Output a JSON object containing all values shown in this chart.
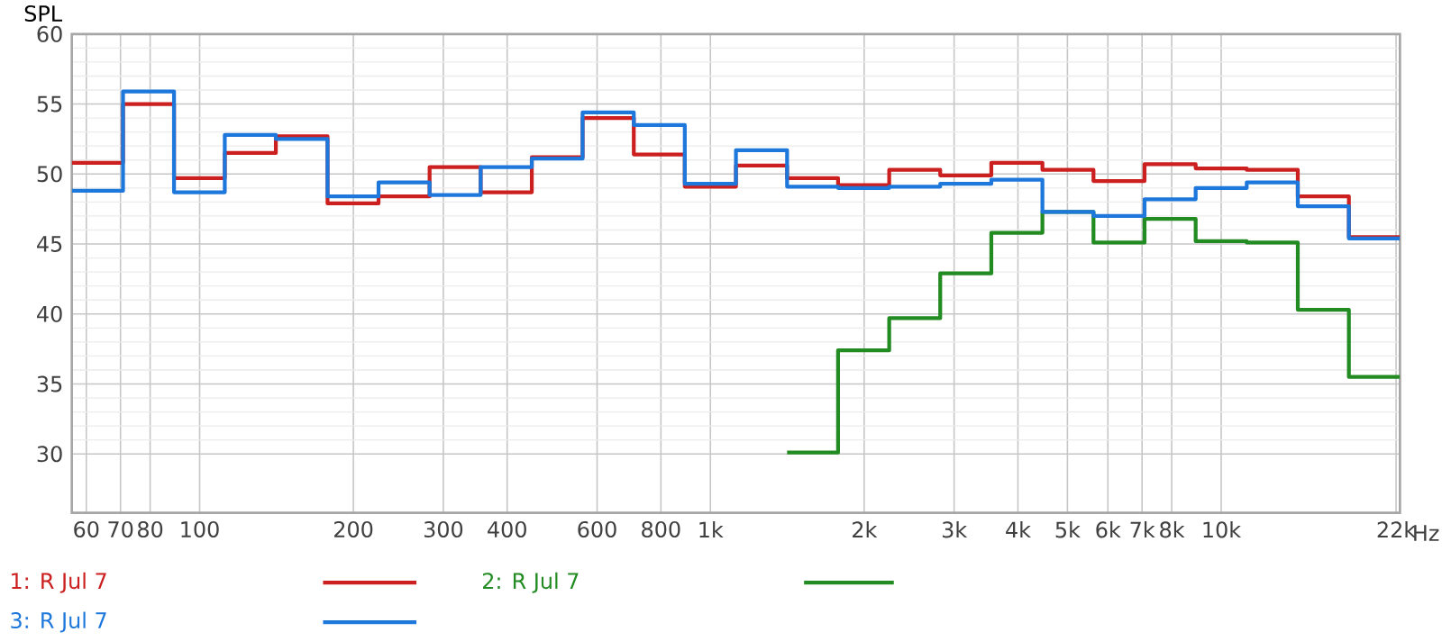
{
  "chart_data": {
    "type": "step",
    "ylabel": "SPL",
    "log": "x",
    "grid": true,
    "legend": "bottom left",
    "marker": "none",
    "line_style": "solid",
    "xlim": [
      56.2,
      22387
    ],
    "ylim": [
      25.8,
      60
    ],
    "xticks": [
      {
        "value": 60,
        "label": "60"
      },
      {
        "value": 70,
        "label": "70"
      },
      {
        "value": 80,
        "label": "80"
      },
      {
        "value": 100,
        "label": "100"
      },
      {
        "value": 200,
        "label": "200"
      },
      {
        "value": 300,
        "label": "300"
      },
      {
        "value": 400,
        "label": "400"
      },
      {
        "value": 600,
        "label": "600"
      },
      {
        "value": 800,
        "label": "800"
      },
      {
        "value": 1000,
        "label": "1k"
      },
      {
        "value": 2000,
        "label": "2k"
      },
      {
        "value": 3000,
        "label": "3k"
      },
      {
        "value": 4000,
        "label": "4k"
      },
      {
        "value": 5000,
        "label": "5k"
      },
      {
        "value": 6000,
        "label": "6k"
      },
      {
        "value": 7000,
        "label": "7k"
      },
      {
        "value": 8000,
        "label": "8k"
      },
      {
        "value": 10000,
        "label": "10k"
      },
      {
        "value": 22000,
        "label": "22k"
      }
    ],
    "xlabel": "Hz",
    "yticks": [
      30,
      35,
      40,
      45,
      50,
      55,
      60
    ],
    "x": [
      56.2,
      70.8,
      89.1,
      112,
      141,
      178,
      224,
      282,
      355,
      447,
      562,
      708,
      891,
      1122,
      1413,
      1778,
      2239,
      2818,
      3548,
      4467,
      5623,
      7079,
      8913,
      11220,
      14125,
      17783,
      22387
    ],
    "series": [
      {
        "name": "1: R Jul 7",
        "color": "#cc1f1f",
        "values": [
          50.8,
          55.0,
          49.7,
          51.5,
          52.7,
          47.9,
          48.4,
          50.5,
          48.7,
          51.2,
          54.0,
          51.4,
          49.1,
          50.6,
          49.7,
          49.2,
          50.3,
          49.9,
          50.8,
          50.3,
          49.5,
          50.7,
          50.4,
          50.3,
          48.4,
          45.5,
          45.5
        ]
      },
      {
        "name": "2: R Jul 7",
        "color": "#228b22",
        "values": [
          null,
          null,
          null,
          null,
          null,
          null,
          null,
          null,
          null,
          null,
          null,
          null,
          null,
          null,
          30.1,
          37.4,
          39.7,
          42.9,
          45.8,
          47.3,
          45.1,
          46.8,
          45.2,
          45.1,
          40.3,
          35.5,
          35.5
        ]
      },
      {
        "name": "3: R Jul 7",
        "color": "#1e78dc",
        "values": [
          48.8,
          55.9,
          48.7,
          52.8,
          52.5,
          48.4,
          49.4,
          48.5,
          50.5,
          51.1,
          54.4,
          53.5,
          49.3,
          51.7,
          49.1,
          49.0,
          49.1,
          49.3,
          49.6,
          47.3,
          47.0,
          48.2,
          49.0,
          49.4,
          47.7,
          45.4,
          45.4
        ]
      }
    ]
  }
}
